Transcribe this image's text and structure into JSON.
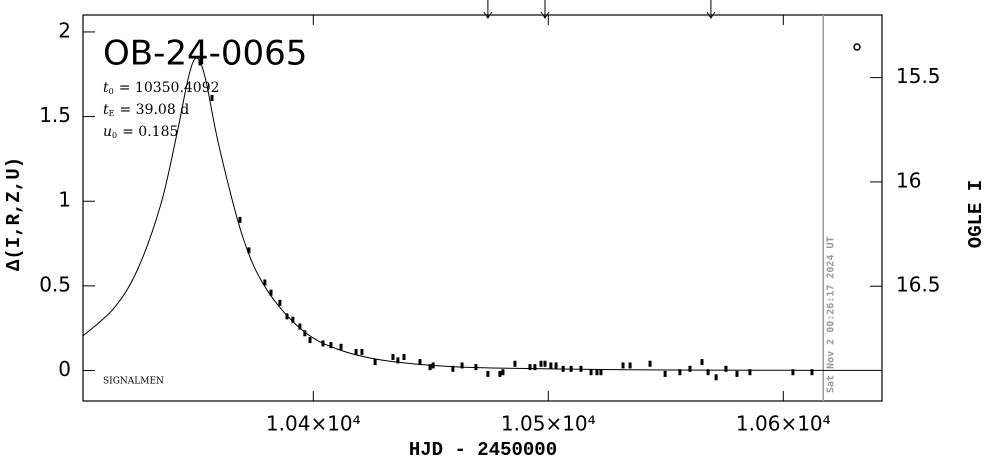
{
  "chart_data": {
    "type": "scatter",
    "title": "OB-24-0065",
    "params": [
      {
        "symbol": "t",
        "sub": "0",
        "text": "= 10350.4092"
      },
      {
        "symbol": "t",
        "sub": "E",
        "text": "= 39.08 d"
      },
      {
        "symbol": "u",
        "sub": "0",
        "text": "= 0.185"
      }
    ],
    "footnote": "SIGNALMEN",
    "x_label": "HJD - 2450000",
    "y_label": "Δ(I,R,Z,U)",
    "y2_label": "OGLE I",
    "xlim": [
      10302,
      10642
    ],
    "xticks": [
      {
        "value": 10400,
        "label": "1.04×10⁴"
      },
      {
        "value": 10500,
        "label": "1.05×10⁴"
      },
      {
        "value": 10600,
        "label": "1.06×10⁴"
      }
    ],
    "ylim": [
      -0.18,
      2.1
    ],
    "yticks": [
      0,
      0.5,
      1,
      1.5,
      2
    ],
    "y2lim": [
      17.05,
      15.2
    ],
    "y2ticks": [
      15.5,
      16,
      16.5
    ],
    "color": "#000000",
    "x": [
      10351.8,
      10356.9,
      10368.8,
      10372.6,
      10379.4,
      10382.0,
      10385.8,
      10388.8,
      10391.3,
      10394.3,
      10396.4,
      10398.6,
      10404.1,
      10407.5,
      10411.8,
      10418.2,
      10420.7,
      10426.3,
      10433.9,
      10436.0,
      10438.6,
      10445.4,
      10449.7,
      10451.0,
      10459.4,
      10463.3,
      10469.2,
      10474.3,
      10479.4,
      10480.7,
      10485.8,
      10492.2,
      10494.3,
      10496.9,
      10498.6,
      10501.1,
      10503.3,
      10506.3,
      10509.7,
      10513.9,
      10518.2,
      10520.7,
      10522.4,
      10531.8,
      10534.8,
      10543.3,
      10549.7,
      10556.0,
      10560.3,
      10565.4,
      10568.0,
      10571.4,
      10575.6,
      10580.3,
      10585.8,
      10604.1,
      10612.2
    ],
    "values": [
      1.82,
      1.61,
      0.89,
      0.71,
      0.52,
      0.46,
      0.4,
      0.32,
      0.3,
      0.26,
      0.22,
      0.18,
      0.16,
      0.15,
      0.14,
      0.11,
      0.11,
      0.05,
      0.08,
      0.06,
      0.08,
      0.05,
      0.02,
      0.03,
      0.01,
      0.03,
      0.02,
      -0.02,
      -0.02,
      -0.01,
      0.04,
      0.02,
      0.02,
      0.04,
      0.04,
      0.03,
      0.03,
      0.01,
      0.01,
      0.01,
      -0.01,
      -0.01,
      -0.01,
      0.03,
      0.03,
      0.04,
      -0.02,
      -0.01,
      0.01,
      0.05,
      -0.01,
      -0.04,
      0.01,
      -0.02,
      -0.01,
      -0.01,
      -0.01
    ],
    "model": {
      "x": [
        10302,
        10315,
        10325,
        10335,
        10342,
        10347,
        10350.4,
        10354,
        10360,
        10370,
        10380,
        10395,
        10410,
        10430,
        10460,
        10500,
        10550,
        10600,
        10642
      ],
      "values": [
        0.205,
        0.366,
        0.59,
        0.976,
        1.4,
        1.74,
        1.846,
        1.729,
        1.318,
        0.788,
        0.482,
        0.242,
        0.128,
        0.06,
        0.0226,
        0.01,
        0.0032,
        0.0013,
        0.0007
      ]
    },
    "arrows_x": [
      10474.3,
      10498.6,
      10569.2
    ],
    "now_line": {
      "x": 10617,
      "label": "Sat Nov  2 00:26:17 2024 UT",
      "color": "#999999"
    }
  }
}
